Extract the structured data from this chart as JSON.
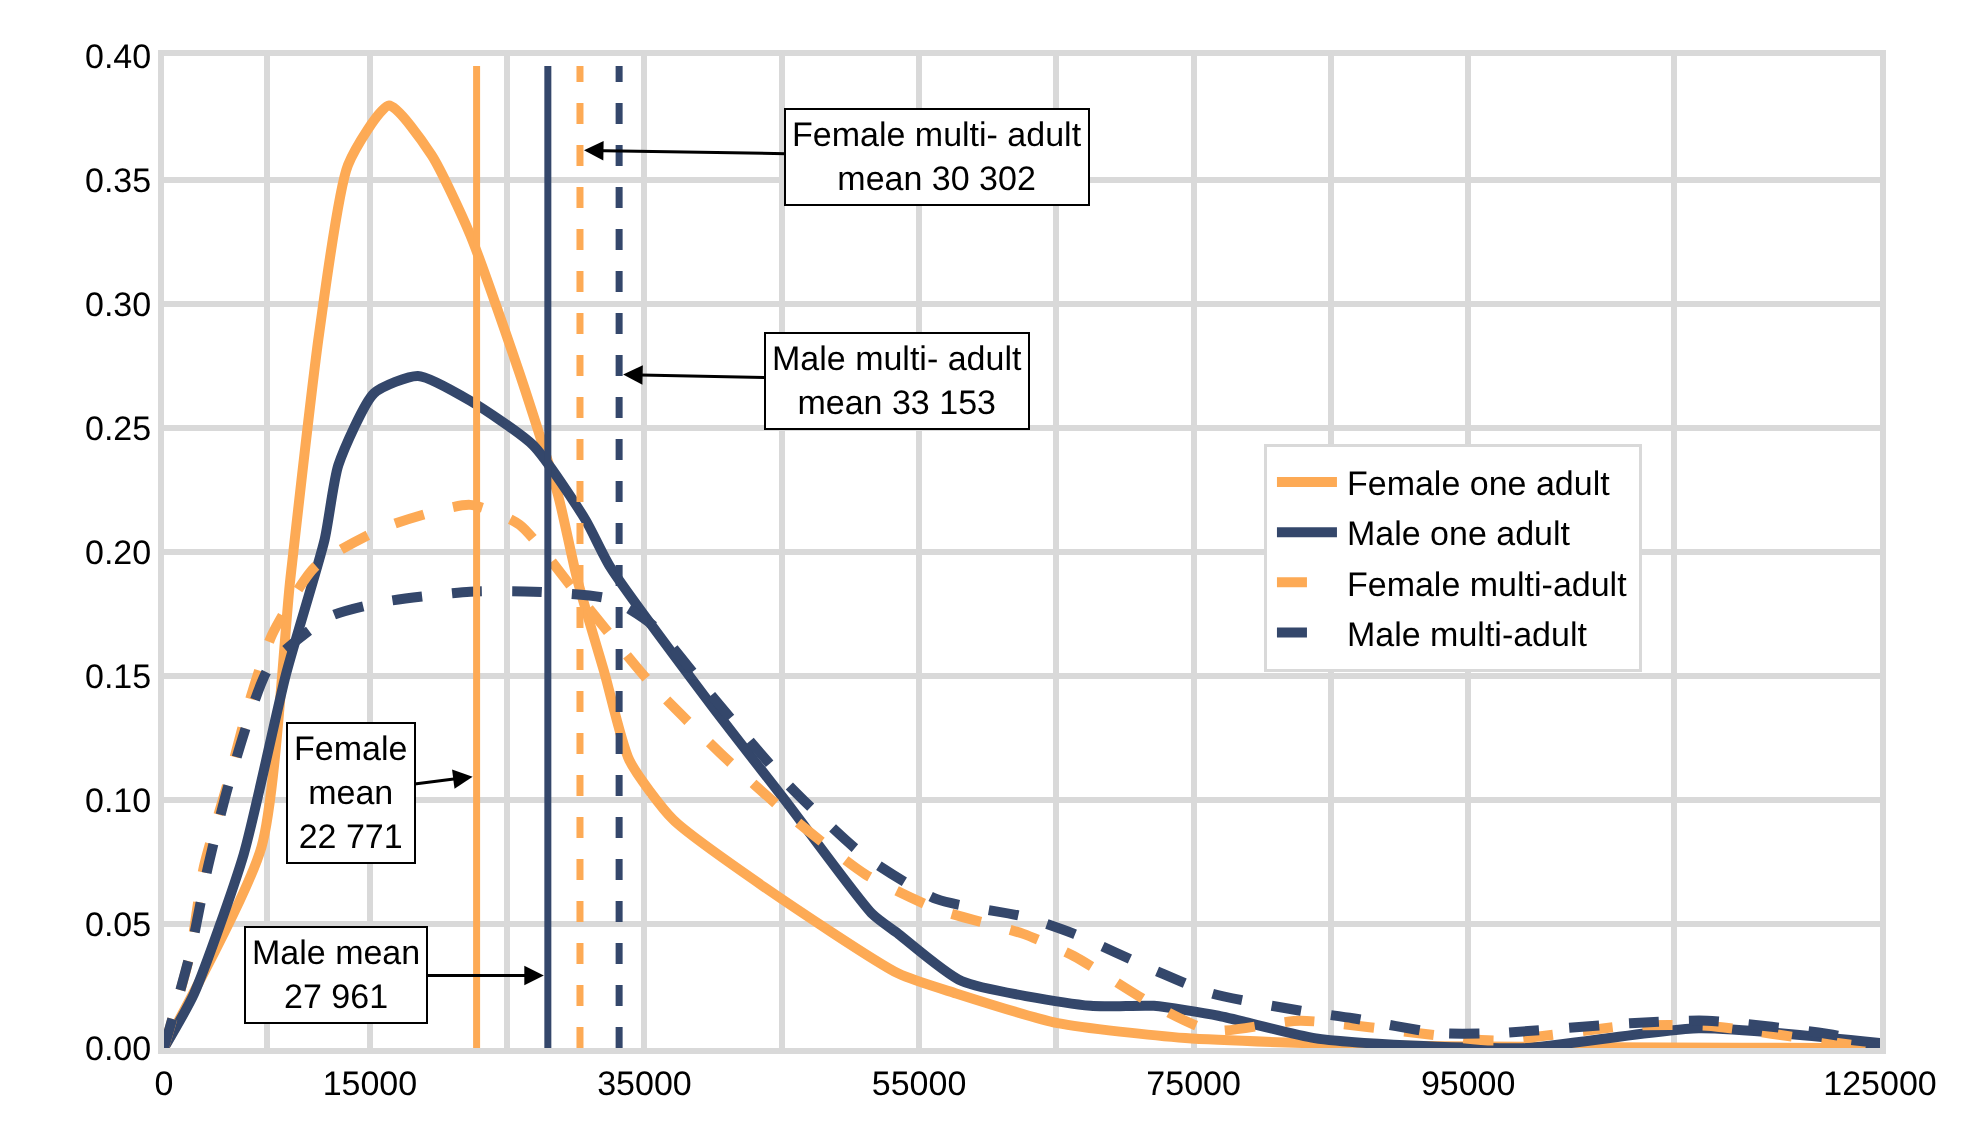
{
  "chart_data": {
    "type": "line",
    "grid": true,
    "legend": "right",
    "xlim": [
      0,
      125000
    ],
    "ylim": [
      0,
      0.4
    ],
    "xticks": [
      0,
      {
        "value": 7500,
        "label": null
      },
      15000,
      {
        "value": 25000,
        "label": null
      },
      35000,
      {
        "value": 45000,
        "label": null
      },
      55000,
      {
        "value": 65000,
        "label": null
      },
      75000,
      {
        "value": 85000,
        "label": null
      },
      95000,
      {
        "value": 110000,
        "label": null
      },
      125000
    ],
    "yticks": [
      {
        "value": 0,
        "label": "0.00"
      },
      {
        "value": 0.05,
        "label": "0.05"
      },
      {
        "value": 0.1,
        "label": "0.10"
      },
      {
        "value": 0.15,
        "label": "0.15"
      },
      {
        "value": 0.2,
        "label": "0.20"
      },
      {
        "value": 0.25,
        "label": "0.25"
      },
      {
        "value": 0.3,
        "label": "0.30"
      },
      {
        "value": 0.35,
        "label": "0.35"
      },
      {
        "value": 0.4,
        "label": "0.40"
      }
    ],
    "series": [
      {
        "name": "Female one adult",
        "color": "#fdaa55",
        "line_style": "solid",
        "x": [
          0,
          7100,
          9200,
          11300,
          13400,
          16400,
          19500,
          22300,
          25900,
          28700,
          30100,
          32100,
          33900,
          37100,
          43700,
          53500,
          57700,
          65100,
          74400,
          89800,
          125000
        ],
        "values": [
          0,
          0.081,
          0.189,
          0.288,
          0.356,
          0.38,
          0.36,
          0.328,
          0.272,
          0.223,
          0.189,
          0.151,
          0.116,
          0.092,
          0.065,
          0.03,
          0.022,
          0.01,
          0.004,
          0.001,
          0
        ]
      },
      {
        "name": "Male one adult",
        "color": "#34476b",
        "line_style": "solid",
        "x": [
          0,
          2200,
          5800,
          8900,
          11700,
          12700,
          15300,
          18500,
          22300,
          26900,
          30700,
          32500,
          39900,
          45500,
          51600,
          53500,
          58100,
          67500,
          72100,
          76800,
          83800,
          90800,
          99200,
          111800,
          125000
        ],
        "values": [
          0,
          0.022,
          0.078,
          0.151,
          0.205,
          0.235,
          0.264,
          0.271,
          0.261,
          0.243,
          0.213,
          0.194,
          0.138,
          0.098,
          0.054,
          0.046,
          0.027,
          0.017,
          0.017,
          0.013,
          0.004,
          0.001,
          0,
          0.008,
          0.002
        ]
      },
      {
        "name": "Female multi-adult",
        "color": "#fdaa55",
        "line_style": "dashed",
        "x": [
          0,
          1900,
          2900,
          4700,
          6400,
          7900,
          11000,
          16100,
          22300,
          25900,
          30100,
          35300,
          40500,
          45500,
          51100,
          56300,
          62600,
          66300,
          71900,
          76300,
          82800,
          92900,
          97100,
          106800,
          112400,
          121900,
          125000
        ],
        "values": [
          0,
          0.038,
          0.073,
          0.108,
          0.143,
          0.167,
          0.194,
          0.21,
          0.219,
          0.211,
          0.183,
          0.148,
          0.119,
          0.094,
          0.07,
          0.056,
          0.046,
          0.037,
          0.018,
          0.007,
          0.011,
          0.005,
          0.003,
          0.009,
          0.009,
          0.002,
          0
        ]
      },
      {
        "name": "Male multi-adult",
        "color": "#34476b",
        "line_style": "dashed",
        "x": [
          0,
          1900,
          3200,
          4800,
          7700,
          12100,
          16100,
          22300,
          26900,
          32500,
          35700,
          39900,
          45500,
          50900,
          56300,
          62600,
          66300,
          72300,
          76300,
          82800,
          86600,
          92900,
          97100,
          106800,
          112400,
          121900,
          125000
        ],
        "values": [
          0,
          0.038,
          0.073,
          0.108,
          0.154,
          0.174,
          0.18,
          0.184,
          0.184,
          0.181,
          0.17,
          0.142,
          0.106,
          0.078,
          0.06,
          0.053,
          0.046,
          0.031,
          0.022,
          0.015,
          0.012,
          0.006,
          0.006,
          0.01,
          0.011,
          0.005,
          0
        ]
      }
    ],
    "ref_lines": [
      {
        "axis": "x",
        "value": 22771,
        "label": "Female\nmean\n22 771",
        "color": "#fdaa55",
        "line_style": "solid"
      },
      {
        "axis": "x",
        "value": 27961,
        "label": "Male mean\n27 961",
        "color": "#34476b",
        "line_style": "solid"
      },
      {
        "axis": "x",
        "value": 30302,
        "label": "Female multi- adult\nmean 30 302",
        "color": "#fdaa55",
        "line_style": "dashed"
      },
      {
        "axis": "x",
        "value": 33153,
        "label": "Male multi- adult\nmean 33 153",
        "color": "#34476b",
        "line_style": "dashed"
      }
    ]
  }
}
